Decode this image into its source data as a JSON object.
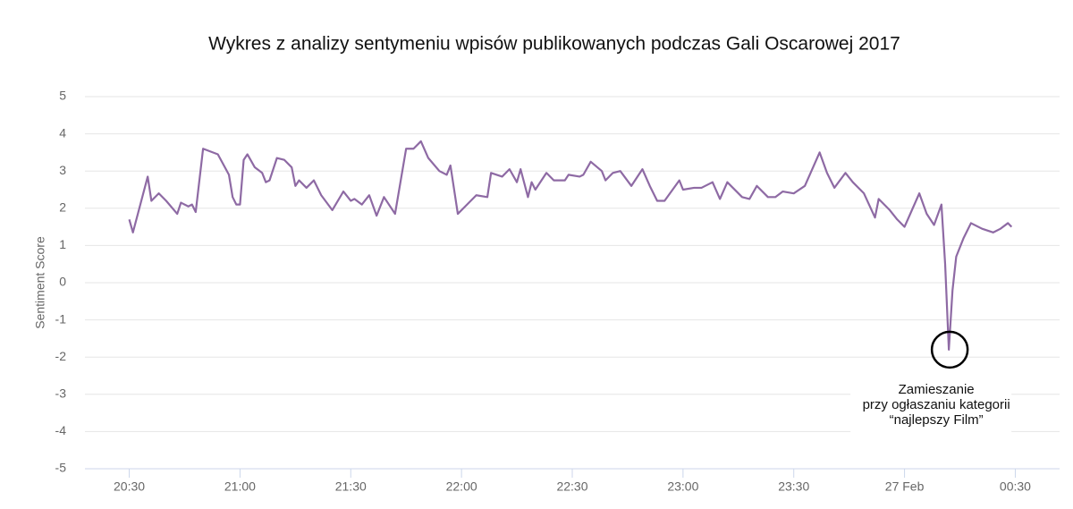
{
  "chart_data": {
    "type": "line",
    "title": "Wykres z analizy sentymeniu wpisów publikowanych podczas Gali Oscarowej 2017",
    "y_label": "Sentiment Score",
    "annotation": [
      "Zamieszanie",
      "przy ogłaszaniu kategorii",
      "“najlepszy Film”"
    ],
    "x": [
      "20:30",
      "20:31",
      "20:33",
      "20:35",
      "20:36",
      "20:38",
      "20:40",
      "20:43",
      "20:44",
      "20:46",
      "20:47",
      "20:48",
      "20:50",
      "20:54",
      "20:57",
      "20:58",
      "20:59",
      "21:00",
      "21:01",
      "21:02",
      "21:04",
      "21:06",
      "21:07",
      "21:08",
      "21:10",
      "21:12",
      "21:14",
      "21:15",
      "21:16",
      "21:18",
      "21:20",
      "21:22",
      "21:25",
      "21:28",
      "21:30",
      "21:31",
      "21:33",
      "21:35",
      "21:37",
      "21:39",
      "21:42",
      "21:45",
      "21:47",
      "21:49",
      "21:51",
      "21:54",
      "21:56",
      "21:57",
      "21:59",
      "22:01",
      "22:04",
      "22:07",
      "22:08",
      "22:11",
      "22:13",
      "22:15",
      "22:16",
      "22:18",
      "22:19",
      "22:20",
      "22:23",
      "22:25",
      "22:28",
      "22:29",
      "22:32",
      "22:33",
      "22:35",
      "22:38",
      "22:39",
      "22:41",
      "22:43",
      "22:46",
      "22:49",
      "22:51",
      "22:53",
      "22:55",
      "22:59",
      "23:00",
      "23:03",
      "23:05",
      "23:08",
      "23:10",
      "23:12",
      "23:16",
      "23:18",
      "23:20",
      "23:23",
      "23:25",
      "23:27",
      "23:30",
      "23:33",
      "23:37",
      "23:39",
      "23:41",
      "23:44",
      "23:46",
      "23:49",
      "23:52",
      "23:53",
      "23:56",
      "23:58",
      "00:00",
      "00:02",
      "00:04",
      "00:06",
      "00:08",
      "00:10",
      "00:11",
      "00:12",
      "00:13",
      "00:14",
      "00:16",
      "00:18",
      "00:21",
      "00:24",
      "00:26",
      "00:28",
      "00:29"
    ],
    "series": [
      {
        "name": "Sentiment Score",
        "color": "#8e6aa4",
        "values": [
          1.7,
          1.35,
          2.1,
          2.85,
          2.2,
          2.4,
          2.2,
          1.85,
          2.15,
          2.05,
          2.1,
          1.9,
          3.6,
          3.45,
          2.9,
          2.3,
          2.1,
          2.1,
          3.3,
          3.45,
          3.1,
          2.95,
          2.7,
          2.75,
          3.35,
          3.3,
          3.1,
          2.6,
          2.75,
          2.55,
          2.75,
          2.35,
          1.95,
          2.45,
          2.2,
          2.25,
          2.1,
          2.35,
          1.8,
          2.3,
          1.85,
          3.6,
          3.6,
          3.8,
          3.35,
          3.0,
          2.9,
          3.15,
          1.85,
          2.05,
          2.35,
          2.3,
          2.95,
          2.85,
          3.05,
          2.7,
          3.05,
          2.3,
          2.7,
          2.5,
          2.95,
          2.75,
          2.75,
          2.9,
          2.85,
          2.9,
          3.25,
          3.0,
          2.75,
          2.95,
          3.0,
          2.6,
          3.05,
          2.6,
          2.2,
          2.2,
          2.75,
          2.5,
          2.55,
          2.55,
          2.7,
          2.25,
          2.7,
          2.3,
          2.25,
          2.6,
          2.3,
          2.3,
          2.45,
          2.4,
          2.6,
          3.5,
          2.95,
          2.55,
          2.95,
          2.7,
          2.4,
          1.75,
          2.25,
          1.95,
          1.7,
          1.5,
          1.95,
          2.4,
          1.85,
          1.55,
          2.1,
          0.5,
          -1.8,
          -0.2,
          0.7,
          1.2,
          1.6,
          1.45,
          1.35,
          1.45,
          1.6,
          1.5
        ]
      }
    ],
    "xlim": [
      "20:18",
      "00:42"
    ],
    "xticks": [
      "20:30",
      "21:00",
      "21:30",
      "22:00",
      "22:30",
      "23:00",
      "23:30",
      {
        "value": "00:00",
        "label": "27 Feb"
      },
      "00:30"
    ],
    "ylim": [
      -5,
      5
    ],
    "yticks": [
      -5,
      -4,
      -3,
      -2,
      -1,
      0,
      1,
      2,
      3,
      4,
      5
    ],
    "grid": true
  }
}
